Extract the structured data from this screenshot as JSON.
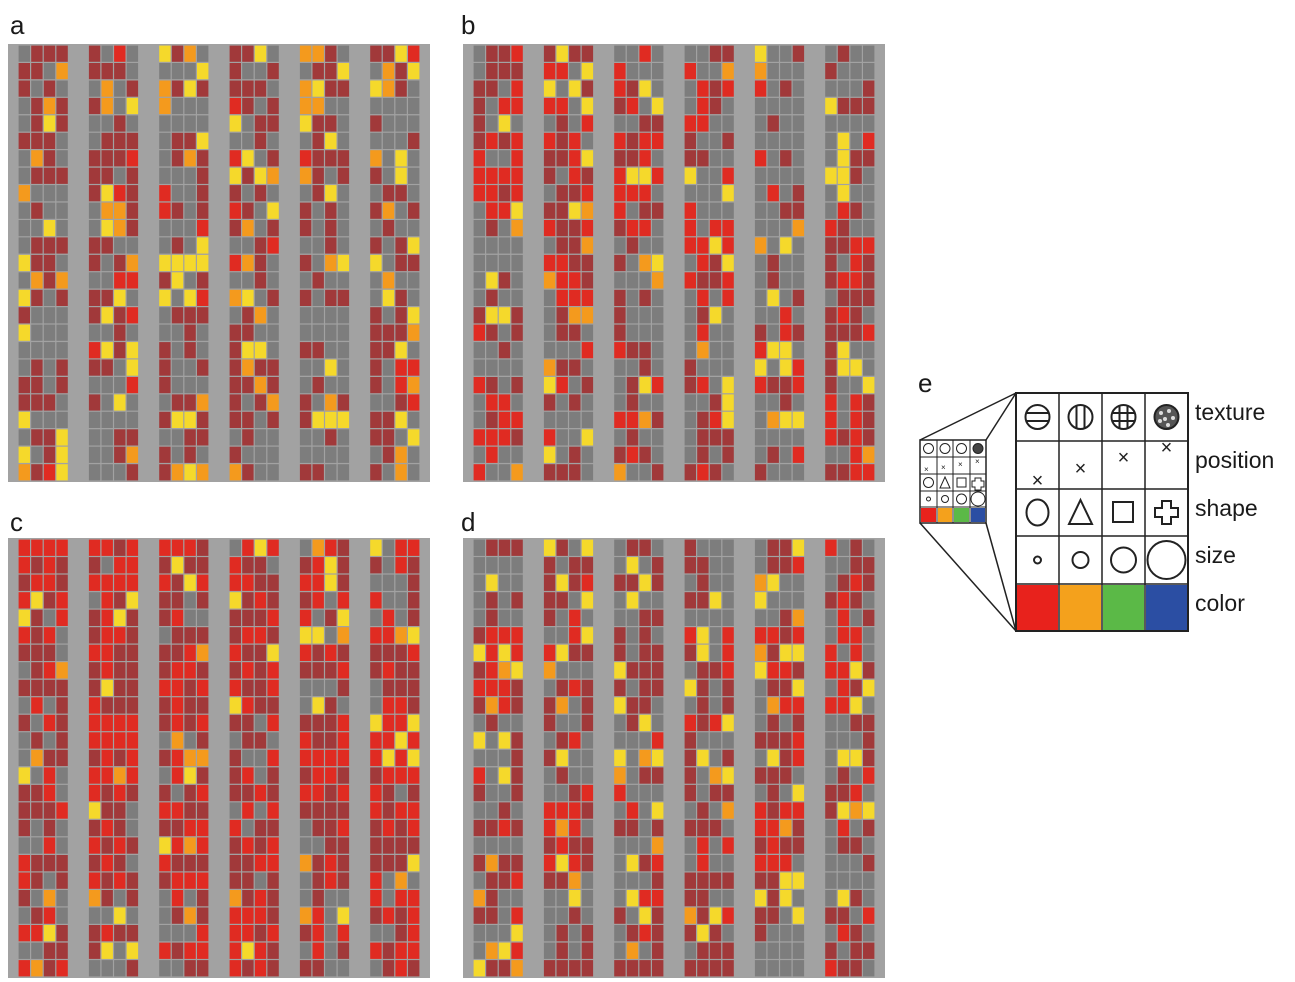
{
  "figure": {
    "panels": [
      {
        "letter": "a",
        "description": "activation grid"
      },
      {
        "letter": "b",
        "description": "activation grid"
      },
      {
        "letter": "c",
        "description": "activation grid"
      },
      {
        "letter": "d",
        "description": "activation grid"
      }
    ],
    "legend": {
      "letter": "e",
      "rows": [
        "texture",
        "position",
        "shape",
        "size",
        "color"
      ],
      "colors": [
        "#e8221c",
        "#f4a11c",
        "#5bb947",
        "#2b4ea3"
      ]
    }
  },
  "palette": {
    "off": "#7d7d7d",
    "dark_red": "#a1393a",
    "red": "#e02b22",
    "orange": "#f49a1d",
    "yellow": "#f5d92b",
    "panel_bg": "#a2a2a2"
  }
}
